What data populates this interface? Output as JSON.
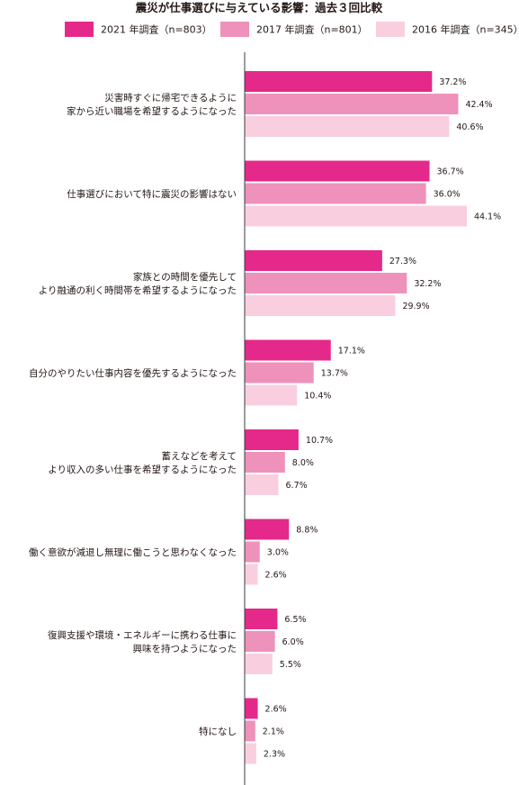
{
  "chart_data": {
    "type": "bar",
    "orientation": "horizontal",
    "title": "震災が仕事選びに与えている影響：過去３回比較",
    "series": [
      {
        "name": "2021 年調査（n=803）",
        "color": "#e4298a",
        "values": [
          37.2,
          36.7,
          27.3,
          17.1,
          10.7,
          8.8,
          6.5,
          2.6
        ]
      },
      {
        "name": "2017 年調査（n=801）",
        "color": "#ee92bb",
        "values": [
          42.4,
          36.0,
          32.2,
          13.7,
          8.0,
          3.0,
          6.0,
          2.1
        ]
      },
      {
        "name": "2016 年調査（n=345）",
        "color": "#f9cfe0",
        "values": [
          40.6,
          44.1,
          29.9,
          10.4,
          6.7,
          2.6,
          5.5,
          2.3
        ]
      }
    ],
    "categories": [
      [
        "災害時すぐに帰宅できるように",
        "家から近い職場を希望するようになった"
      ],
      [
        "仕事選びにおいて特に震災の影響はない"
      ],
      [
        "家族との時間を優先して",
        "より融通の利く時間帯を希望するようになった"
      ],
      [
        "自分のやりたい仕事内容を優先するようになった"
      ],
      [
        "蓄えなどを考えて",
        "より収入の多い仕事を希望するようになった"
      ],
      [
        "働く意欲が減退し無理に働こうと思わなくなった"
      ],
      [
        "復興支援や環境・エネルギーに携わる仕事に",
        "興味を持つようになった"
      ],
      [
        "特になし"
      ]
    ],
    "value_suffix": "%",
    "value_decimals": 1,
    "xlim": [
      0,
      50
    ],
    "grid": false,
    "legend_position": "top"
  }
}
